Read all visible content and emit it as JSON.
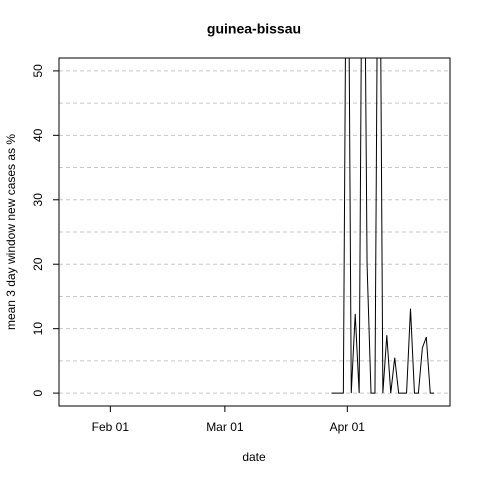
{
  "chart_data": {
    "type": "line",
    "title": "guinea-bissau",
    "x_label": "date",
    "y_label": "mean  3  day window new cases as %",
    "x": [
      "Mar 28",
      "Mar 29",
      "Mar 30",
      "Mar 31",
      "Apr 01",
      "Apr 02",
      "Apr 03",
      "Apr 04",
      "Apr 05",
      "Apr 06",
      "Apr 07",
      "Apr 08",
      "Apr 09",
      "Apr 10",
      "Apr 11",
      "Apr 12",
      "Apr 13",
      "Apr 14",
      "Apr 15",
      "Apr 16",
      "Apr 17",
      "Apr 18",
      "Apr 19",
      "Apr 20",
      "Apr 21",
      "Apr 22",
      "Apr 23"
    ],
    "series": [
      {
        "name": "guinea-bissau",
        "color": "#000000",
        "values": [
          0,
          0,
          0,
          0,
          100,
          0,
          12.3,
          0,
          100,
          20,
          0,
          0,
          100,
          0,
          9,
          0,
          5.5,
          0,
          0,
          0,
          13.1,
          0,
          0,
          7,
          8.7,
          0,
          0
        ]
      }
    ],
    "xlim": [
      "Jan 19",
      "Apr 27"
    ],
    "xticks": [
      "Feb 01",
      "Mar 01",
      "Apr 01"
    ],
    "ylim": [
      -2,
      52
    ],
    "yticks": [
      0,
      10,
      20,
      30,
      40,
      50
    ],
    "ygrid": [
      0,
      5,
      10,
      15,
      20,
      25,
      30,
      35,
      40,
      45,
      50
    ],
    "grid": true
  }
}
